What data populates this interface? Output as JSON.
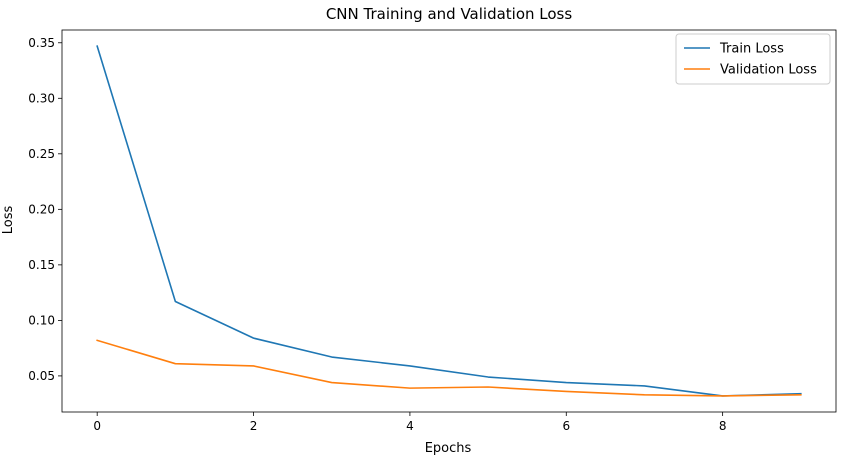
{
  "chart_data": {
    "type": "line",
    "title": "CNN Training and Validation Loss",
    "xlabel": "Epochs",
    "ylabel": "Loss",
    "x": [
      0,
      1,
      2,
      3,
      4,
      5,
      6,
      7,
      8,
      9
    ],
    "xlim": [
      -0.45,
      9.45
    ],
    "ylim": [
      0.0175,
      0.3615
    ],
    "xticks": [
      0,
      2,
      4,
      6,
      8
    ],
    "yticks": [
      0.05,
      0.1,
      0.15,
      0.2,
      0.25,
      0.3,
      0.35
    ],
    "ytick_labels": [
      "0.05",
      "0.10",
      "0.15",
      "0.20",
      "0.25",
      "0.30",
      "0.35"
    ],
    "grid": false,
    "legend_position": "top-right",
    "series": [
      {
        "name": "Train Loss",
        "color": "#1f77b4",
        "values": [
          0.347,
          0.117,
          0.084,
          0.067,
          0.059,
          0.049,
          0.044,
          0.041,
          0.032,
          0.034
        ]
      },
      {
        "name": "Validation Loss",
        "color": "#ff7f0e",
        "values": [
          0.082,
          0.061,
          0.059,
          0.044,
          0.039,
          0.04,
          0.036,
          0.033,
          0.032,
          0.033
        ]
      }
    ]
  }
}
